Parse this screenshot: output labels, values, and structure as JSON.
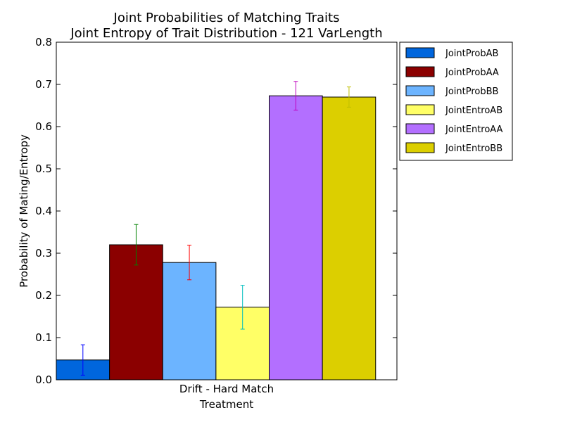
{
  "chart_data": {
    "type": "bar",
    "title": [
      "Joint Probabilities of Matching Traits",
      "Joint Entropy of Trait Distribution - 121 VarLength"
    ],
    "xlabel": "Treatment",
    "ylabel": "Probability of Mating/Entropy",
    "categories": [
      "Drift - Hard Match"
    ],
    "ylim": [
      0,
      0.8
    ],
    "yticks": [
      "0.0",
      "0.1",
      "0.2",
      "0.3",
      "0.4",
      "0.5",
      "0.6",
      "0.7",
      "0.8"
    ],
    "grid": false,
    "legend_position": "outside-right-top",
    "series": [
      {
        "name": "JointProbAB",
        "values": [
          0.047
        ],
        "error": [
          0.036
        ],
        "color": "#0066dd",
        "error_color": "#0000ff"
      },
      {
        "name": "JointProbAA",
        "values": [
          0.32
        ],
        "error": [
          0.048
        ],
        "color": "#8b0000",
        "error_color": "#008000"
      },
      {
        "name": "JointProbBB",
        "values": [
          0.278
        ],
        "error": [
          0.041
        ],
        "color": "#6cb4ff",
        "error_color": "#ff0000"
      },
      {
        "name": "JointEntroAB",
        "values": [
          0.172
        ],
        "error": [
          0.052
        ],
        "color": "#ffff66",
        "error_color": "#00bfbf"
      },
      {
        "name": "JointEntroAA",
        "values": [
          0.673
        ],
        "error": [
          0.034
        ],
        "color": "#b36fff",
        "error_color": "#bf00bf"
      },
      {
        "name": "JointEntroBB",
        "values": [
          0.67
        ],
        "error": [
          0.024
        ],
        "color": "#dccf00",
        "error_color": "#bfbf00"
      }
    ]
  }
}
